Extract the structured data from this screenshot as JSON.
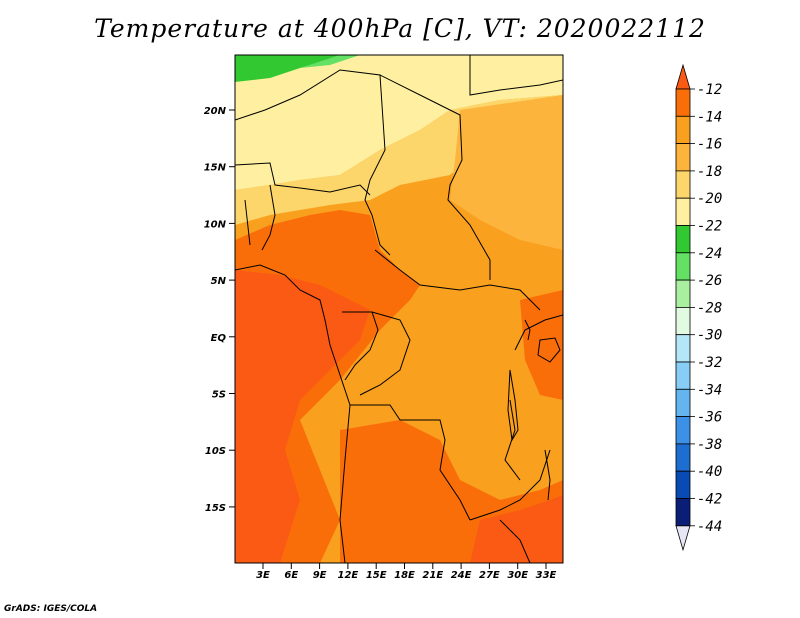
{
  "title": "Temperature at 400hPa [C], VT: 2020022112",
  "credit": "GrADS: IGES/COLA",
  "map": {
    "lat_ticks": [
      "20N",
      "15N",
      "10N",
      "5N",
      "EQ",
      "5S",
      "10S",
      "15S"
    ],
    "lon_ticks": [
      "3E",
      "6E",
      "9E",
      "12E",
      "15E",
      "18E",
      "21E",
      "24E",
      "27E",
      "30E",
      "33E"
    ]
  },
  "colorbar": {
    "levels": [
      "-12",
      "-14",
      "-16",
      "-18",
      "-20",
      "-22",
      "-24",
      "-26",
      "-28",
      "-30",
      "-32",
      "-34",
      "-36",
      "-38",
      "-40",
      "-42",
      "-44"
    ],
    "colors": [
      "#fb5a14",
      "#fa6e0a",
      "#f9a01e",
      "#fcb43c",
      "#fcd66a",
      "#fef0a0",
      "#32c832",
      "#64e164",
      "#a8f0a0",
      "#e1fae1",
      "#b4e6fa",
      "#87cdf5",
      "#64b4f0",
      "#3c91e6",
      "#1e6ed2",
      "#0a4ab4",
      "#0a1e78",
      "#e6e6f5"
    ]
  }
}
